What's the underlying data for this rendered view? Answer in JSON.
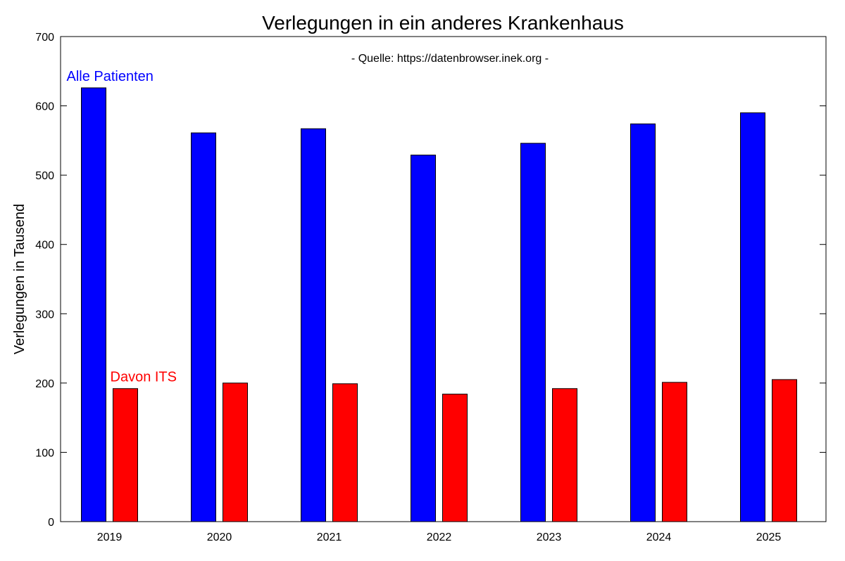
{
  "chart_data": {
    "type": "bar",
    "title": "Verlegungen in ein anderes Krankenhaus",
    "subtitle": "- Quelle: https://datenbrowser.inek.org -",
    "xlabel": "",
    "ylabel": "Verlegungen in Tausend",
    "ylim": [
      0,
      700
    ],
    "yticks": [
      0,
      100,
      200,
      300,
      400,
      500,
      600,
      700
    ],
    "categories": [
      "2019",
      "2020",
      "2021",
      "2022",
      "2023",
      "2024",
      "2025"
    ],
    "series": [
      {
        "name": "Alle Patienten",
        "color": "#0000ff",
        "values": [
          626,
          561,
          567,
          529,
          546,
          574,
          590
        ]
      },
      {
        "name": "Davon ITS",
        "color": "#ff0000",
        "values": [
          192,
          200,
          199,
          184,
          192,
          201,
          205
        ]
      }
    ],
    "grid": false,
    "legend": "inline labels above first bars"
  }
}
